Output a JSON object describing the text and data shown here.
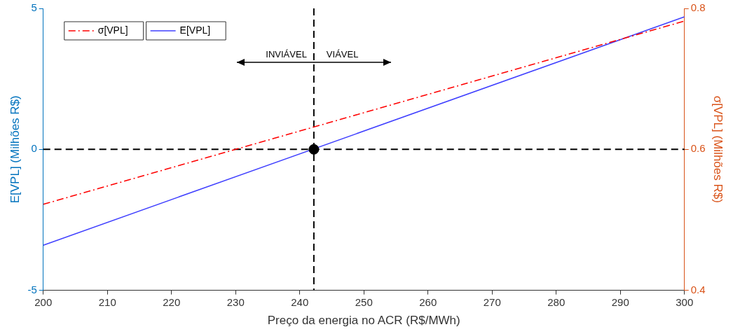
{
  "chart_data": {
    "type": "line",
    "xlabel": "Preço da energia no ACR (R$/MWh)",
    "ylabel": "E[VPL] (Milhões R$)",
    "y2label": "σ[VPL] (Milhões R$)",
    "xlim": [
      200,
      300
    ],
    "xticks": [
      200,
      210,
      220,
      230,
      240,
      250,
      260,
      270,
      280,
      290,
      300
    ],
    "ylim": [
      -5,
      5
    ],
    "yticks": [
      -5,
      0,
      5
    ],
    "y2lim": [
      0.4,
      0.8
    ],
    "y2ticks": [
      0.4,
      0.6,
      0.8
    ],
    "grid": false,
    "legend": "top left",
    "series": [
      {
        "name": "σ[VPL]",
        "color": "#ff0000",
        "axis": "y2",
        "line_style": "dashed",
        "marker": "none",
        "x": [
          200,
          300
        ],
        "values": [
          0.522,
          0.782
        ]
      },
      {
        "name": "E[VPL]",
        "color": "#4040ff",
        "line_style": "solid",
        "marker": "none",
        "x": [
          200,
          300
        ],
        "values": [
          -3.4,
          4.7
        ]
      },
      {
        "color": "#000000",
        "type": "scatter",
        "marker": "circle",
        "x": [
          242.2
        ],
        "values": [
          0
        ]
      }
    ],
    "ref_lines": [
      {
        "axis": "x",
        "value": 242.2,
        "color": "#000000",
        "line_style": "dashed"
      },
      {
        "axis": "y",
        "value": 0,
        "color": "#000000",
        "line_style": "dashed"
      }
    ],
    "annotations": [
      "INVIÁVEL",
      "VIÁVEL"
    ]
  }
}
